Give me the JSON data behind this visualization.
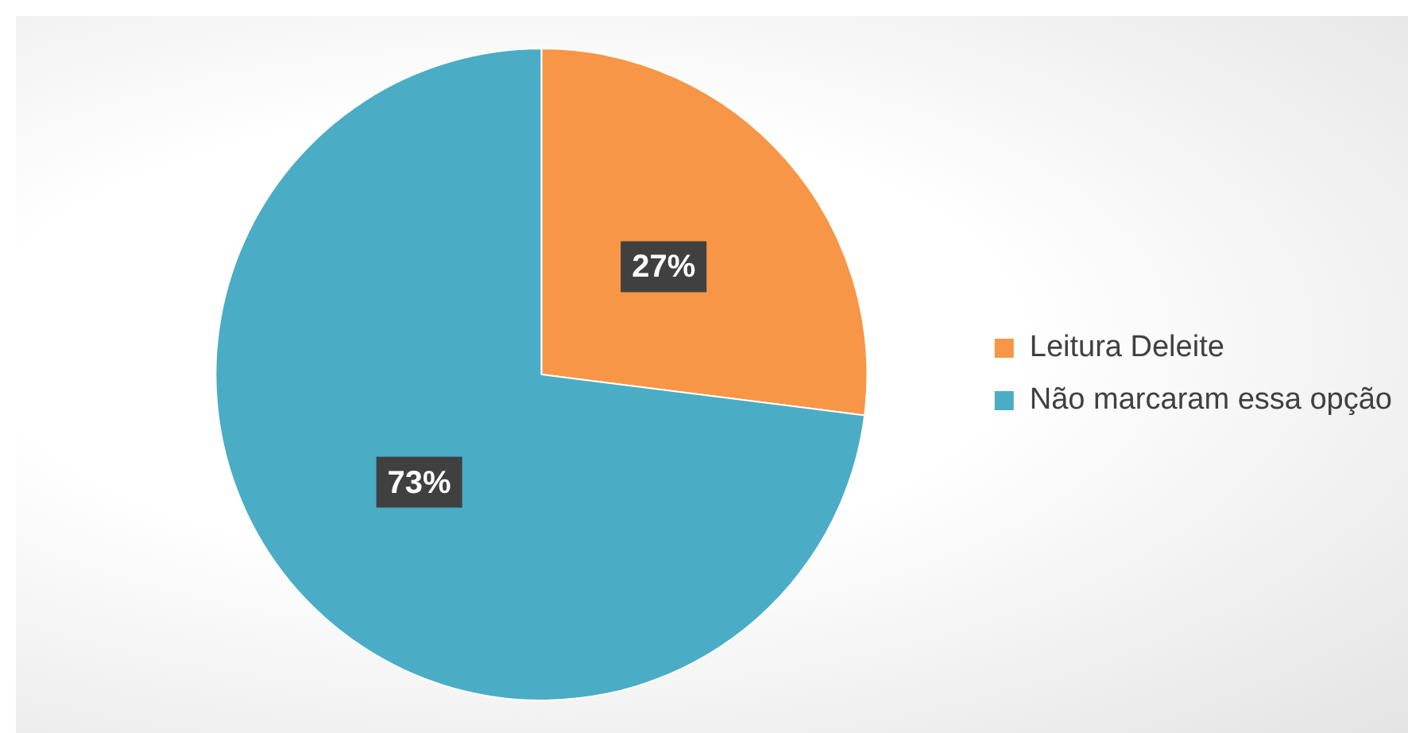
{
  "chart_data": {
    "type": "pie",
    "categories": [
      "Leitura Deleite",
      "Não marcaram essa opção"
    ],
    "values": [
      27,
      73
    ],
    "colors": [
      "#f79646",
      "#4bacc6"
    ],
    "value_labels": [
      "27%",
      "73%"
    ],
    "legend": "right"
  }
}
